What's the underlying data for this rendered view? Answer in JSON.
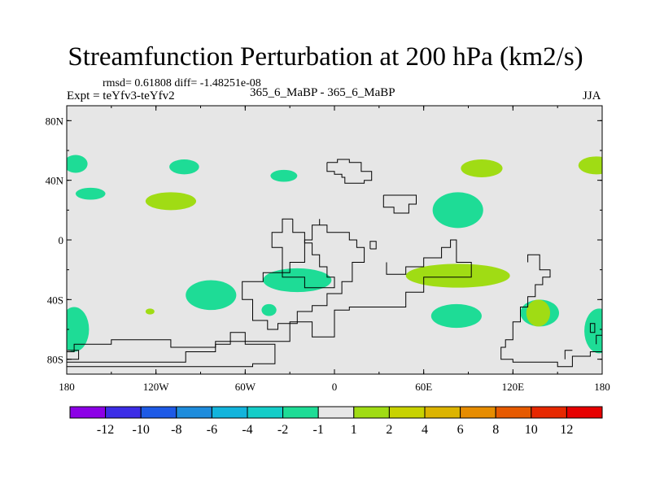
{
  "chart_data": {
    "type": "map-contour",
    "title": "Streamfunction Perturbation at 200 hPa (km2/s)",
    "stats_line": "rmsd= 0.61808 diff= -1.48251e-08",
    "experiment": "Expt = teYfv3-teYfv2",
    "case_label": "365_6_MaBP - 365_6_MaBP",
    "season": "JJA",
    "x_ticks": [
      "180",
      "120W",
      "60W",
      "0",
      "60E",
      "120E",
      "180"
    ],
    "x_tick_values": [
      -180,
      -120,
      -60,
      0,
      60,
      120,
      180
    ],
    "y_ticks": [
      "80N",
      "40N",
      "0",
      "40S",
      "80S"
    ],
    "y_tick_values": [
      80,
      40,
      0,
      -40,
      -80
    ],
    "xlim": [
      -180,
      180
    ],
    "ylim": [
      -90,
      90
    ],
    "background_color": "#e6e6e6",
    "colorbar": {
      "labels": [
        "-12",
        "-10",
        "-8",
        "-6",
        "-4",
        "-2",
        "-1",
        "1",
        "2",
        "4",
        "6",
        "8",
        "10",
        "12"
      ],
      "colors": [
        "#8c00e6",
        "#3c2de6",
        "#1e5ae6",
        "#1e8cdc",
        "#12b4dc",
        "#14cdc8",
        "#1edc96",
        "#e6e6e6",
        "#a0dc14",
        "#c8d200",
        "#dcb400",
        "#e68c00",
        "#e65a00",
        "#e62800",
        "#e60000"
      ]
    },
    "regions": [
      {
        "level": "-1 to -2",
        "color": "#1edc96",
        "lon": -174,
        "lat": 51,
        "rlon": 8,
        "rlat": 6
      },
      {
        "level": "-1 to -2",
        "color": "#1edc96",
        "lon": -164,
        "lat": 31,
        "rlon": 10,
        "rlat": 4
      },
      {
        "level": "-1 to -2",
        "color": "#1edc96",
        "lon": -101,
        "lat": 49,
        "rlon": 10,
        "rlat": 5
      },
      {
        "level": "-1 to -2",
        "color": "#1edc96",
        "lon": -34,
        "lat": 43,
        "rlon": 9,
        "rlat": 4
      },
      {
        "level": "-1 to -2",
        "color": "#1edc96",
        "lon": 83,
        "lat": 20,
        "rlon": 17,
        "rlat": 12
      },
      {
        "level": "-1 to -2",
        "color": "#1edc96",
        "lon": -83,
        "lat": -37,
        "rlon": 17,
        "rlat": 10
      },
      {
        "level": "-1 to -2",
        "color": "#1edc96",
        "lon": -25,
        "lat": -27,
        "rlon": 23,
        "rlat": 8
      },
      {
        "level": "-1 to -2",
        "color": "#1edc96",
        "lon": -44,
        "lat": -47,
        "rlon": 5,
        "rlat": 4
      },
      {
        "level": "-1 to -2",
        "color": "#1edc96",
        "lon": 82,
        "lat": -51,
        "rlon": 17,
        "rlat": 8
      },
      {
        "level": "-1 to -2",
        "color": "#1edc96",
        "lon": 138,
        "lat": -49,
        "rlon": 13,
        "rlat": 9
      },
      {
        "level": "-1 to -2",
        "color": "#1edc96",
        "lon": -175,
        "lat": -60,
        "rlon": 10,
        "rlat": 15
      },
      {
        "level": "-1 to -2",
        "color": "#1edc96",
        "lon": 178,
        "lat": -61,
        "rlon": 10,
        "rlat": 15
      },
      {
        "level": "1 to 2",
        "color": "#a0dc14",
        "lon": 99,
        "lat": 48,
        "rlon": 14,
        "rlat": 6
      },
      {
        "level": "1 to 2",
        "color": "#a0dc14",
        "lon": 176,
        "lat": 50,
        "rlon": 12,
        "rlat": 6
      },
      {
        "level": "1 to 2",
        "color": "#a0dc14",
        "lon": -110,
        "lat": 26,
        "rlon": 17,
        "rlat": 6
      },
      {
        "level": "1 to 2",
        "color": "#a0dc14",
        "lon": 83,
        "lat": -24,
        "rlon": 35,
        "rlat": 8
      },
      {
        "level": "1 to 2",
        "color": "#a0dc14",
        "lon": 137,
        "lat": -49,
        "rlon": 8,
        "rlat": 9
      },
      {
        "level": "1 to 2",
        "color": "#a0dc14",
        "lon": -124,
        "lat": -48,
        "rlon": 3,
        "rlat": 2
      }
    ],
    "coastlines": [
      [
        [
          -5,
          52
        ],
        [
          -5,
          46
        ],
        [
          0,
          46
        ],
        [
          0,
          44
        ],
        [
          5,
          44
        ],
        [
          5,
          42
        ],
        [
          7,
          42
        ],
        [
          7,
          38
        ],
        [
          20,
          38
        ],
        [
          20,
          40
        ],
        [
          25,
          40
        ],
        [
          25,
          46
        ],
        [
          18,
          46
        ],
        [
          18,
          52
        ],
        [
          10,
          52
        ],
        [
          10,
          54
        ],
        [
          2,
          54
        ],
        [
          2,
          52
        ],
        [
          -5,
          52
        ]
      ],
      [
        [
          33,
          30
        ],
        [
          33,
          22
        ],
        [
          40,
          22
        ],
        [
          40,
          18
        ],
        [
          50,
          18
        ],
        [
          50,
          24
        ],
        [
          55,
          24
        ],
        [
          55,
          30
        ],
        [
          33,
          30
        ]
      ],
      [
        [
          -28,
          14
        ],
        [
          -28,
          5
        ],
        [
          -20,
          5
        ],
        [
          -20,
          -2
        ],
        [
          -15,
          -2
        ],
        [
          -15,
          -10
        ],
        [
          -10,
          -10
        ],
        [
          -10,
          -18
        ],
        [
          -5,
          -18
        ],
        [
          -5,
          -25
        ],
        [
          0,
          -25
        ],
        [
          0,
          -32
        ],
        [
          -20,
          -32
        ],
        [
          -20,
          -25
        ],
        [
          -35,
          -25
        ],
        [
          -35,
          -5
        ],
        [
          -42,
          -5
        ],
        [
          -42,
          5
        ],
        [
          -35,
          5
        ],
        [
          -35,
          14
        ],
        [
          -28,
          14
        ]
      ],
      [
        [
          -10,
          14
        ],
        [
          -10,
          10
        ],
        [
          -5,
          10
        ],
        [
          -5,
          5
        ],
        [
          10,
          5
        ],
        [
          10,
          0
        ],
        [
          15,
          0
        ],
        [
          15,
          -5
        ],
        [
          20,
          -5
        ],
        [
          20,
          -15
        ],
        [
          12,
          -15
        ],
        [
          12,
          -28
        ],
        [
          5,
          -28
        ],
        [
          5,
          -36
        ],
        [
          -5,
          -36
        ],
        [
          -5,
          -44
        ],
        [
          -15,
          -44
        ],
        [
          -15,
          -48
        ],
        [
          -25,
          -48
        ],
        [
          -25,
          -56
        ],
        [
          -38,
          -56
        ],
        [
          -38,
          -60
        ],
        [
          -45,
          -60
        ],
        [
          -45,
          -54
        ],
        [
          -55,
          -54
        ],
        [
          -55,
          -40
        ],
        [
          -62,
          -40
        ],
        [
          -62,
          -28
        ],
        [
          -48,
          -28
        ],
        [
          -48,
          -22
        ],
        [
          -30,
          -22
        ],
        [
          -30,
          -15
        ],
        [
          -20,
          -15
        ],
        [
          -20,
          0
        ],
        [
          -15,
          0
        ],
        [
          -15,
          10
        ],
        [
          -10,
          10
        ]
      ],
      [
        [
          24,
          -6
        ],
        [
          24,
          -1
        ],
        [
          28,
          -1
        ],
        [
          28,
          -6
        ],
        [
          24,
          -6
        ]
      ],
      [
        [
          35,
          -15
        ],
        [
          35,
          -23
        ],
        [
          48,
          -23
        ],
        [
          48,
          -18
        ],
        [
          60,
          -18
        ],
        [
          60,
          -12
        ],
        [
          72,
          -12
        ],
        [
          72,
          -5
        ],
        [
          78,
          -5
        ],
        [
          78,
          0
        ],
        [
          82,
          0
        ],
        [
          82,
          -15
        ],
        [
          92,
          -15
        ],
        [
          92,
          -25
        ],
        [
          60,
          -25
        ],
        [
          60,
          -35
        ],
        [
          48,
          -35
        ],
        [
          48,
          -45
        ],
        [
          10,
          -45
        ],
        [
          10,
          -47
        ],
        [
          0,
          -47
        ],
        [
          0,
          -65
        ],
        [
          -15,
          -65
        ],
        [
          -15,
          -55
        ],
        [
          -30,
          -55
        ],
        [
          -30,
          -68
        ],
        [
          -80,
          -68
        ],
        [
          -80,
          -72
        ],
        [
          -110,
          -72
        ],
        [
          -110,
          -67
        ],
        [
          -150,
          -67
        ],
        [
          -150,
          -70
        ],
        [
          -175,
          -70
        ],
        [
          -175,
          -75
        ],
        [
          -180,
          -75
        ]
      ],
      [
        [
          -180,
          -82
        ],
        [
          -100,
          -82
        ],
        [
          -100,
          -75
        ],
        [
          -80,
          -75
        ],
        [
          -80,
          -70
        ],
        [
          -70,
          -70
        ],
        [
          -70,
          -62
        ],
        [
          -60,
          -62
        ],
        [
          -60,
          -70
        ],
        [
          -40,
          -70
        ],
        [
          -40,
          -77
        ],
        [
          -40,
          -83
        ],
        [
          -55,
          -83
        ],
        [
          -55,
          -85
        ],
        [
          -180,
          -85
        ]
      ],
      [
        [
          130,
          -15
        ],
        [
          130,
          -10
        ],
        [
          138,
          -10
        ],
        [
          138,
          -20
        ],
        [
          145,
          -20
        ],
        [
          145,
          -25
        ],
        [
          140,
          -25
        ],
        [
          140,
          -30
        ],
        [
          135,
          -30
        ],
        [
          135,
          -38
        ],
        [
          130,
          -38
        ],
        [
          130,
          -45
        ],
        [
          125,
          -45
        ],
        [
          125,
          -55
        ],
        [
          120,
          -55
        ],
        [
          120,
          -67
        ],
        [
          115,
          -67
        ],
        [
          115,
          -72
        ],
        [
          112,
          -72
        ],
        [
          112,
          -80
        ],
        [
          120,
          -80
        ],
        [
          120,
          -82
        ],
        [
          150,
          -82
        ],
        [
          150,
          -85
        ],
        [
          160,
          -85
        ],
        [
          160,
          -78
        ],
        [
          172,
          -78
        ],
        [
          172,
          -75
        ],
        [
          180,
          -75
        ]
      ],
      [
        [
          172,
          -62
        ],
        [
          172,
          -56
        ],
        [
          175,
          -56
        ],
        [
          175,
          -62
        ],
        [
          172,
          -62
        ]
      ],
      [
        [
          176,
          -70
        ],
        [
          176,
          -64
        ],
        [
          180,
          -64
        ]
      ],
      [
        [
          155,
          -80
        ],
        [
          155,
          -74
        ],
        [
          160,
          -74
        ]
      ],
      [
        [
          -180,
          -74
        ],
        [
          -172,
          -74
        ],
        [
          -172,
          -80
        ],
        [
          -180,
          -80
        ]
      ]
    ]
  }
}
